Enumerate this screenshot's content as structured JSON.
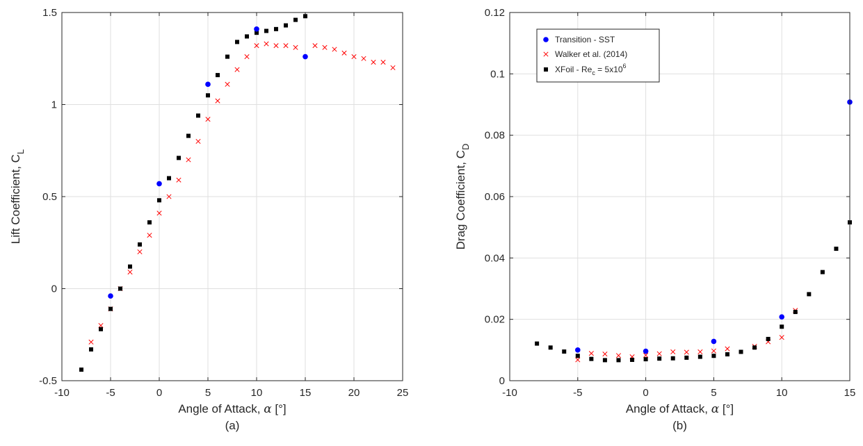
{
  "chart_data": [
    {
      "type": "scatter",
      "panel_label": "(a)",
      "xlabel_prefix": "Angle of Attack, ",
      "xlabel_symbol": "α",
      "xlabel_suffix": " [°]",
      "ylabel_main": "Lift Coefficient, C",
      "ylabel_sub": "L",
      "xlim": [
        -10,
        25
      ],
      "ylim": [
        -0.5,
        1.5
      ],
      "xticks": [
        -10,
        -5,
        0,
        5,
        10,
        15,
        20,
        25
      ],
      "yticks": [
        -0.5,
        0,
        0.5,
        1,
        1.5
      ],
      "ytick_labels": [
        "-0.5",
        "0",
        "0.5",
        "1",
        "1.5"
      ],
      "grid": true,
      "series": [
        {
          "key": "walker",
          "marker": "x",
          "color": "#ff0000",
          "x": [
            -7,
            -6,
            -5,
            -4,
            -3,
            -2,
            -1,
            0,
            1,
            2,
            3,
            4,
            5,
            6,
            7,
            8,
            9,
            10,
            11,
            12,
            13,
            14,
            16,
            17,
            18,
            19,
            20,
            21,
            22,
            23,
            24
          ],
          "y": [
            -0.29,
            -0.2,
            -0.11,
            0.0,
            0.09,
            0.2,
            0.29,
            0.41,
            0.5,
            0.59,
            0.7,
            0.8,
            0.92,
            1.02,
            1.11,
            1.19,
            1.26,
            1.32,
            1.33,
            1.32,
            1.32,
            1.31,
            1.32,
            1.31,
            1.3,
            1.28,
            1.26,
            1.25,
            1.23,
            1.23,
            1.2
          ]
        },
        {
          "key": "xfoil",
          "marker": "square",
          "color": "#000000",
          "x": [
            -8,
            -7,
            -6,
            -5,
            -4,
            -3,
            -2,
            -1,
            0,
            1,
            2,
            3,
            4,
            5,
            6,
            7,
            8,
            9,
            10,
            11,
            12,
            13,
            14,
            15
          ],
          "y": [
            -0.44,
            -0.33,
            -0.22,
            -0.11,
            0.0,
            0.12,
            0.24,
            0.36,
            0.48,
            0.6,
            0.71,
            0.83,
            0.94,
            1.05,
            1.16,
            1.26,
            1.34,
            1.37,
            1.39,
            1.4,
            1.41,
            1.43,
            1.46,
            1.48
          ]
        },
        {
          "key": "sst",
          "marker": "circle",
          "color": "#0000ff",
          "x": [
            -5,
            0,
            5,
            10,
            15
          ],
          "y": [
            -0.04,
            0.57,
            1.11,
            1.41,
            1.26
          ]
        }
      ]
    },
    {
      "type": "scatter",
      "panel_label": "(b)",
      "xlabel_prefix": "Angle of Attack, ",
      "xlabel_symbol": "α",
      "xlabel_suffix": " [°]",
      "ylabel_main": "Drag Coefficient, C",
      "ylabel_sub": "D",
      "xlim": [
        -10,
        15
      ],
      "ylim": [
        0,
        0.12
      ],
      "xticks": [
        -10,
        -5,
        0,
        5,
        10,
        15
      ],
      "yticks": [
        0,
        0.02,
        0.04,
        0.06,
        0.08,
        0.1,
        0.12
      ],
      "ytick_labels": [
        "0",
        "0.02",
        "0.04",
        "0.06",
        "0.08",
        "0.1",
        "0.12"
      ],
      "grid": true,
      "legend_position": "top-left",
      "legend": [
        {
          "key": "sst",
          "marker": "circle",
          "color": "#0000ff",
          "label": "Transition - SST"
        },
        {
          "key": "walker",
          "marker": "x",
          "color": "#ff0000",
          "label": "Walker et al. (2014)"
        },
        {
          "key": "xfoil",
          "marker": "square",
          "color": "#000000",
          "label_main": "XFoil - Re",
          "label_sub": "c",
          "label_mid": " = 5x10",
          "label_sup": "6"
        }
      ],
      "series": [
        {
          "key": "walker",
          "marker": "x",
          "color": "#ff0000",
          "x": [
            -5,
            -4,
            -3,
            -2,
            -1,
            0,
            1,
            2,
            3,
            4,
            5,
            6,
            8,
            9,
            10,
            11
          ],
          "y": [
            0.0068,
            0.0089,
            0.0087,
            0.0082,
            0.0078,
            0.0083,
            0.0088,
            0.0094,
            0.0093,
            0.0094,
            0.0097,
            0.0104,
            0.0112,
            0.0127,
            0.0141,
            0.0229
          ]
        },
        {
          "key": "xfoil",
          "marker": "square",
          "color": "#000000",
          "x": [
            -8,
            -7,
            -6,
            -5,
            -4,
            -3,
            -2,
            -1,
            0,
            1,
            2,
            3,
            4,
            5,
            6,
            7,
            8,
            9,
            10,
            11,
            12,
            13,
            14,
            15
          ],
          "y": [
            0.0121,
            0.0108,
            0.0095,
            0.0081,
            0.0071,
            0.0067,
            0.0067,
            0.0068,
            0.007,
            0.0072,
            0.0073,
            0.0075,
            0.0078,
            0.0081,
            0.0086,
            0.0094,
            0.0108,
            0.0136,
            0.0176,
            0.0224,
            0.0282,
            0.0354,
            0.043,
            0.0516
          ]
        },
        {
          "key": "sst",
          "marker": "circle",
          "color": "#0000ff",
          "x": [
            -5,
            0,
            5,
            10,
            15
          ],
          "y": [
            0.01,
            0.0096,
            0.0128,
            0.0208,
            0.0908
          ]
        }
      ]
    }
  ]
}
